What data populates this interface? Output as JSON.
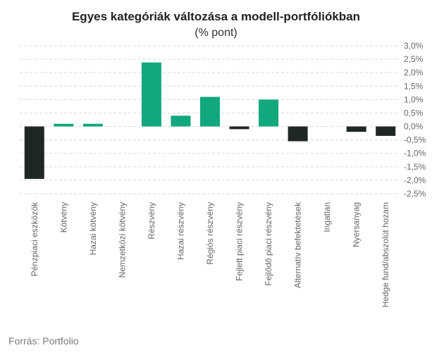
{
  "title": "Egyes kategóriák változása a modell-portfóliókban",
  "subtitle": "(% pont)",
  "source": "Forrás: Portfolio",
  "colors": {
    "positive": "#11a87e",
    "negative": "#1f2723",
    "grid": "#d9d9d9"
  },
  "chart_data": {
    "type": "bar",
    "title": "Egyes kategóriák változása a modell-portfóliókban",
    "subtitle": "(% pont)",
    "categories": [
      "Pénzpiaci eszközök",
      "Kötvény",
      "Hazai kötvény",
      "Nemzetközi kötvény",
      "Részvény",
      "Hazai részvény",
      "Régiós részvény",
      "Fejlett piaci részvény",
      "Fejlődő piaci részvény",
      "Alternatív befektetések",
      "Ingatlan",
      "Nyersanyag",
      "Hedge fund/abszolút hozam"
    ],
    "values": [
      -1.95,
      0.1,
      0.1,
      0.0,
      2.38,
      0.4,
      1.1,
      -0.1,
      1.0,
      -0.55,
      0.0,
      -0.2,
      -0.35
    ],
    "ylim": [
      -2.5,
      3.0
    ],
    "yticks": [
      3.0,
      2.5,
      2.0,
      1.5,
      1.0,
      0.5,
      0.0,
      -0.5,
      -1.0,
      -1.5,
      -2.0,
      -2.5
    ],
    "ytick_labels": [
      "3,0%",
      "2,5%",
      "2,0%",
      "1,5%",
      "1,0%",
      "0,5%",
      "0,0%",
      "-0,5%",
      "-1,0%",
      "-1,5%",
      "-2,0%",
      "-2,5%"
    ],
    "y_axis_position": "right",
    "grid": true,
    "legend": "none"
  }
}
